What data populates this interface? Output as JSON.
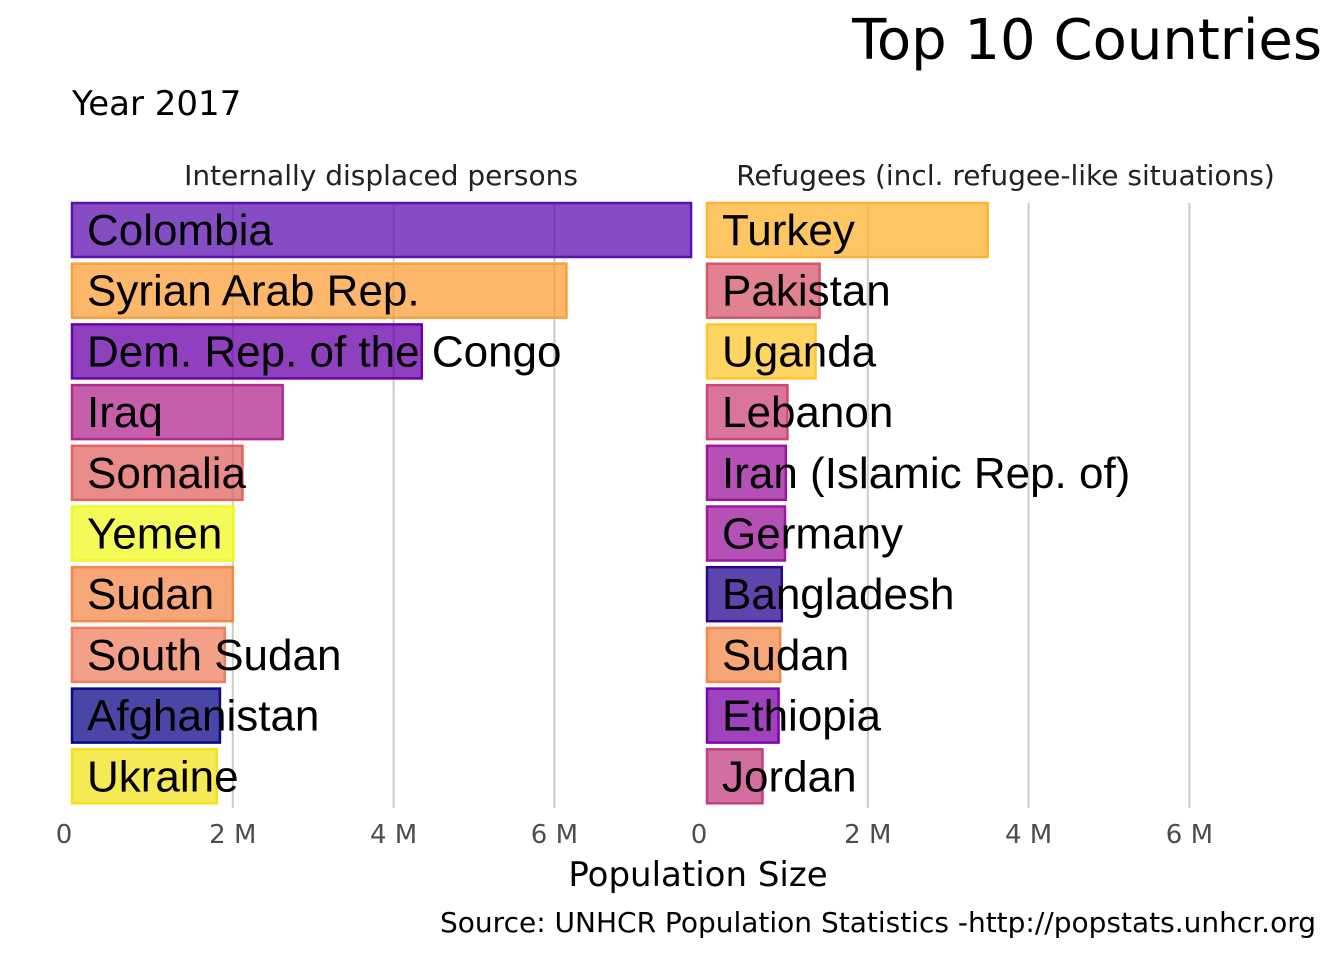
{
  "chart_data": {
    "type": "bar",
    "orientation": "horizontal",
    "title": "Top 10 Countries",
    "subtitle": "Year 2017",
    "xlabel": "Population Size",
    "caption": "Source: UNHCR Population Statistics -http://popstats.unhcr.org",
    "xlim": [
      0,
      7500000
    ],
    "xticks": [
      0,
      2000000,
      4000000,
      6000000
    ],
    "xtick_labels": [
      "0",
      "2 M",
      "4 M",
      "6 M"
    ],
    "grid": true,
    "panels": [
      {
        "title": "Internally displaced persons",
        "bars": [
          {
            "label": "Colombia",
            "value": 7700000,
            "color": "#5c10b0"
          },
          {
            "label": "Syrian Arab Rep.",
            "value": 6150000,
            "color": "#fb9f3a"
          },
          {
            "label": "Dem. Rep. of the Congo",
            "value": 4350000,
            "color": "#6a00a8"
          },
          {
            "label": "Iraq",
            "value": 2620000,
            "color": "#b12a90"
          },
          {
            "label": "Somalia",
            "value": 2120000,
            "color": "#e16462"
          },
          {
            "label": "Yemen",
            "value": 2010000,
            "color": "#f0f921"
          },
          {
            "label": "Sudan",
            "value": 2000000,
            "color": "#f48849"
          },
          {
            "label": "South Sudan",
            "value": 1900000,
            "color": "#f07f5f"
          },
          {
            "label": "Afghanistan",
            "value": 1840000,
            "color": "#0d0887"
          },
          {
            "label": "Ukraine",
            "value": 1800000,
            "color": "#f3e11e"
          }
        ]
      },
      {
        "title": "Refugees (incl. refugee-like situations)",
        "bars": [
          {
            "label": "Turkey",
            "value": 3490000,
            "color": "#fdb32f"
          },
          {
            "label": "Pakistan",
            "value": 1400000,
            "color": "#d8576b"
          },
          {
            "label": "Uganda",
            "value": 1350000,
            "color": "#fec62f"
          },
          {
            "label": "Lebanon",
            "value": 1000000,
            "color": "#cc4778"
          },
          {
            "label": "Iran (Islamic Rep. of)",
            "value": 980000,
            "color": "#9c179e"
          },
          {
            "label": "Germany",
            "value": 970000,
            "color": "#9c179e"
          },
          {
            "label": "Bangladesh",
            "value": 930000,
            "color": "#2a0593"
          },
          {
            "label": "Sudan",
            "value": 910000,
            "color": "#f48849"
          },
          {
            "label": "Ethiopia",
            "value": 890000,
            "color": "#7e03a8"
          },
          {
            "label": "Jordan",
            "value": 690000,
            "color": "#c33d80"
          }
        ]
      }
    ]
  }
}
